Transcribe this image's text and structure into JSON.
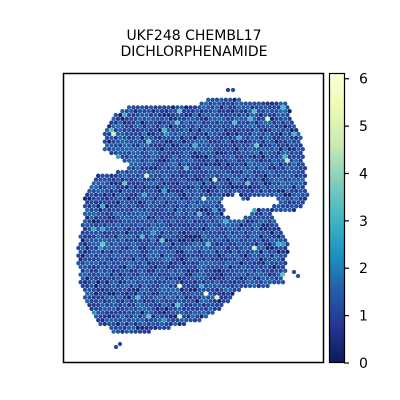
{
  "chart_data": {
    "type": "scatter",
    "subtype": "spatial hexbin map",
    "title_lines": [
      "UKF248 CHEMBL17",
      "DICHLORPHENAMIDE"
    ],
    "xlabel": "",
    "ylabel": "",
    "axis_ticks_visible": false,
    "grid": false,
    "colorbar": {
      "position": "right",
      "colormap": "YlGnBu",
      "range": [
        0,
        6.1
      ],
      "ticks": [
        0,
        1,
        2,
        3,
        4,
        5,
        6
      ],
      "tick_labels": [
        "0",
        "1",
        "2",
        "3",
        "4",
        "5",
        "6"
      ]
    },
    "value_distribution": {
      "typical_range": [
        0.6,
        1.6
      ],
      "min": 0,
      "max": 6.0,
      "notable_high_values": [
        2.5,
        3.0,
        6.0
      ]
    },
    "colors": {
      "low": "#081d58",
      "mid": "#253494",
      "typical": "#2c4aa0",
      "high_teal": "#41b6c4",
      "max": "#ffffd9",
      "frame": "#000000"
    }
  }
}
